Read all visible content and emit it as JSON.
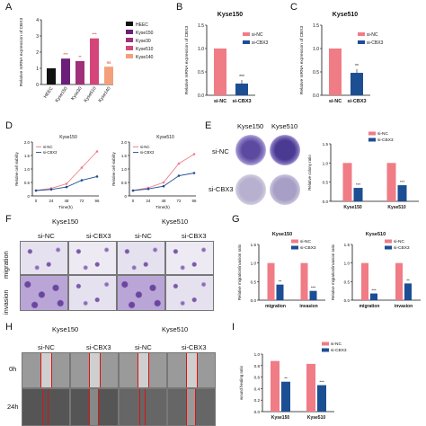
{
  "panels": {
    "A": "A",
    "B": "B",
    "C": "C",
    "D": "D",
    "E": "E",
    "F": "F",
    "G": "G",
    "H": "H",
    "I": "I"
  },
  "colors": {
    "siNC": "#f07c86",
    "siCBX3": "#1c4e93",
    "HEEC": "#111111",
    "Kyse150": "#6b1f7a",
    "Kyse30": "#a0307a",
    "Kyse510": "#d6457a",
    "Kyse140": "#f4a07a"
  },
  "panelA": {
    "ylabel": "Relative mRNA expression of CBX3",
    "legend": [
      "HEEC",
      "Kyse150",
      "Kyse30",
      "Kyse510",
      "Kyse140"
    ],
    "sig": [
      "",
      "***",
      "**",
      "***",
      "ns"
    ]
  },
  "panelB": {
    "title": "Kyse150",
    "ylabel": "Relative mRNA expression of CBX3",
    "legend": [
      "si-NC",
      "si-CBX3"
    ],
    "sig": "***"
  },
  "panelC": {
    "title": "Kyse510",
    "ylabel": "Relative mRNA expression of CBX3",
    "legend": [
      "si-NC",
      "si-CBX3"
    ],
    "sig": "**"
  },
  "panelD": {
    "charts": [
      {
        "title": "Kyse150",
        "ylabel": "Relative cell viability",
        "xlabel": "Time(h)",
        "legend": [
          "si-NC",
          "si-CBX3"
        ]
      },
      {
        "title": "Kyse510",
        "ylabel": "Relative cell viability",
        "xlabel": "Time(h)",
        "legend": [
          "si-NC",
          "si-CBX3"
        ]
      }
    ]
  },
  "panelE": {
    "col_labels": [
      "Kyse150",
      "Kyse510"
    ],
    "row_labels": [
      "si-NC",
      "si-CBX3"
    ],
    "ylabel": "Relative colony ratio",
    "legend": [
      "si-NC",
      "si-CBX3"
    ],
    "sig": [
      "***",
      "***"
    ]
  },
  "panelF": {
    "group_labels": [
      "Kyse150",
      "Kyse510"
    ],
    "col_labels": [
      "si-NC",
      "si-CBX3",
      "si-NC",
      "si-CBX3"
    ],
    "row_labels": [
      "migration",
      "invasion"
    ]
  },
  "panelG": {
    "charts": [
      {
        "title": "Kyse150",
        "ylabel": "Relative migration/invasion ratio",
        "legend": [
          "si-NC",
          "si-CBX3"
        ],
        "sig": [
          "**",
          "***"
        ]
      },
      {
        "title": "Kyse510",
        "ylabel": "Relative migration/invasion ratio",
        "legend": [
          "si-NC",
          "si-CBX3"
        ],
        "sig": [
          "***",
          "**"
        ]
      }
    ]
  },
  "panelH": {
    "group_labels": [
      "Kyse150",
      "Kyse510"
    ],
    "col_labels": [
      "si-NC",
      "si-CBX3",
      "si-NC",
      "si-CBX3"
    ],
    "row_labels": [
      "0h",
      "24h"
    ]
  },
  "panelI": {
    "ylabel": "wound healing ratio",
    "legend": [
      "si-NC",
      "si-CBX3"
    ],
    "sig": [
      "**",
      "***"
    ]
  },
  "chart_data": [
    {
      "id": "A",
      "type": "bar",
      "categories": [
        "HEEC",
        "Kyse150",
        "Kyse30",
        "Kyse510",
        "Kyse140"
      ],
      "values": [
        1.0,
        1.6,
        1.45,
        2.85,
        1.1
      ],
      "ylim": [
        0,
        4
      ],
      "yticks": [
        "0",
        "1",
        "2",
        "3",
        "4"
      ]
    },
    {
      "id": "B",
      "type": "bar",
      "categories": [
        "si-NC",
        "si-CBX3"
      ],
      "values": [
        1.0,
        0.25
      ],
      "ylim": [
        0,
        1.5
      ],
      "yticks": [
        "0.0",
        "0.5",
        "1.0",
        "1.5"
      ]
    },
    {
      "id": "C",
      "type": "bar",
      "categories": [
        "si-NC",
        "si-CBX3"
      ],
      "values": [
        1.0,
        0.48
      ],
      "ylim": [
        0,
        1.5
      ],
      "yticks": [
        "0.0",
        "0.5",
        "1.0",
        "1.5"
      ]
    },
    {
      "id": "D1",
      "type": "line",
      "x": [
        0,
        24,
        48,
        72,
        96
      ],
      "series": [
        {
          "name": "si-NC",
          "values": [
            0.2,
            0.28,
            0.45,
            1.05,
            1.65
          ]
        },
        {
          "name": "si-CBX3",
          "values": [
            0.2,
            0.24,
            0.33,
            0.58,
            0.72
          ]
        }
      ],
      "ylim": [
        0,
        2
      ],
      "yticks": [
        "0",
        "0.5",
        "1.0",
        "1.5",
        "2.0"
      ],
      "xticks": [
        "0",
        "24",
        "48",
        "72",
        "96"
      ]
    },
    {
      "id": "D2",
      "type": "line",
      "x": [
        0,
        24,
        48,
        72,
        96
      ],
      "series": [
        {
          "name": "si-NC",
          "values": [
            0.2,
            0.3,
            0.5,
            1.2,
            1.55
          ]
        },
        {
          "name": "si-CBX3",
          "values": [
            0.2,
            0.26,
            0.36,
            0.75,
            0.85
          ]
        }
      ],
      "ylim": [
        0,
        2
      ],
      "yticks": [
        "0",
        "0.5",
        "1.0",
        "1.5",
        "2.0"
      ],
      "xticks": [
        "0",
        "24",
        "48",
        "72",
        "96"
      ]
    },
    {
      "id": "E",
      "type": "bar",
      "categories": [
        "Kyse150",
        "Kyse510"
      ],
      "series": [
        {
          "name": "si-NC",
          "values": [
            1.0,
            1.0
          ]
        },
        {
          "name": "si-CBX3",
          "values": [
            0.35,
            0.42
          ]
        }
      ],
      "ylim": [
        0,
        1.5
      ],
      "yticks": [
        "0.0",
        "0.5",
        "1.0",
        "1.5"
      ]
    },
    {
      "id": "G1",
      "type": "bar",
      "categories": [
        "migration",
        "invasion"
      ],
      "series": [
        {
          "name": "si-NC",
          "values": [
            1.0,
            1.0
          ]
        },
        {
          "name": "si-CBX3",
          "values": [
            0.42,
            0.25
          ]
        }
      ],
      "ylim": [
        0,
        1.5
      ],
      "yticks": [
        "0.0",
        "0.5",
        "1.0",
        "1.5"
      ]
    },
    {
      "id": "G2",
      "type": "bar",
      "categories": [
        "migration",
        "invasion"
      ],
      "series": [
        {
          "name": "si-NC",
          "values": [
            1.0,
            1.0
          ]
        },
        {
          "name": "si-CBX3",
          "values": [
            0.18,
            0.45
          ]
        }
      ],
      "ylim": [
        0,
        1.5
      ],
      "yticks": [
        "0.0",
        "0.5",
        "1.0",
        "1.5"
      ]
    },
    {
      "id": "I",
      "type": "bar",
      "categories": [
        "Kyse150",
        "Kyse510"
      ],
      "series": [
        {
          "name": "si-NC",
          "values": [
            0.88,
            0.83
          ]
        },
        {
          "name": "si-CBX3",
          "values": [
            0.52,
            0.46
          ]
        }
      ],
      "ylim": [
        0,
        1.0
      ],
      "yticks": [
        "0.0",
        "0.2",
        "0.4",
        "0.6",
        "0.8",
        "1.0"
      ]
    }
  ]
}
